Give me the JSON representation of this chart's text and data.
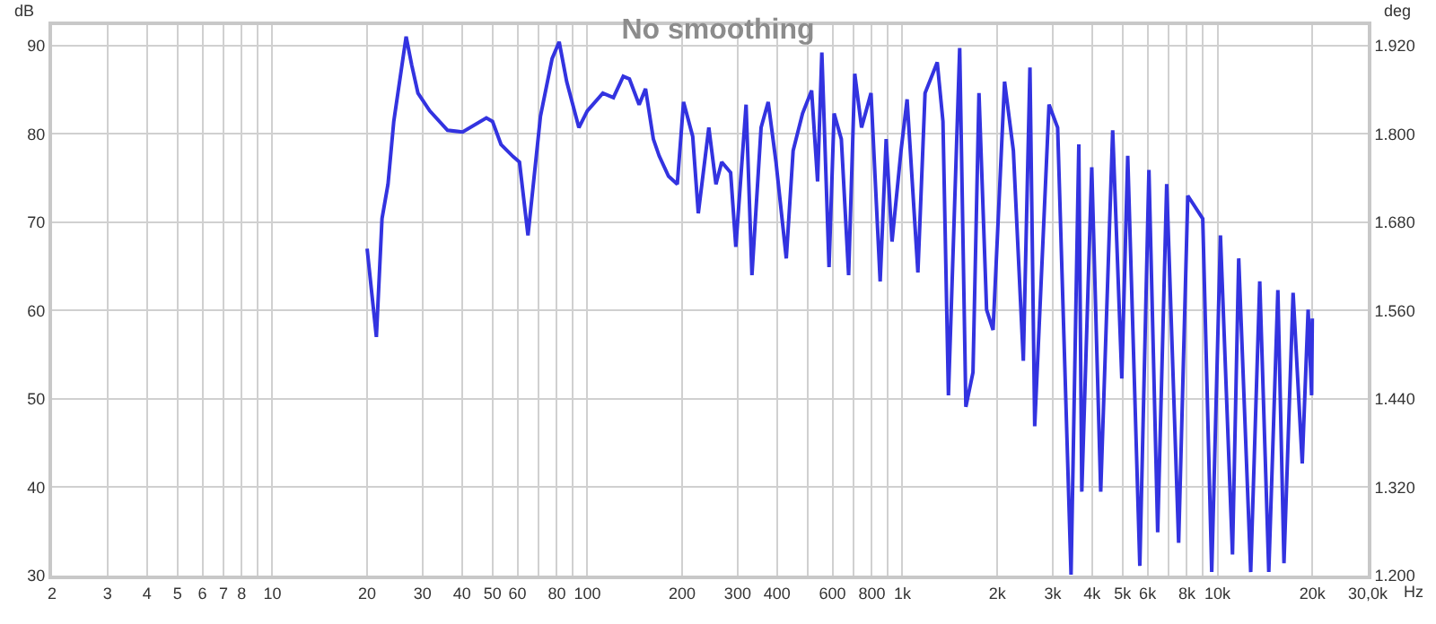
{
  "chart_data": {
    "type": "line",
    "title": "No smoothing",
    "xlabel": "Hz",
    "ylabel": "dB",
    "y2label": "deg",
    "log": "x",
    "grid": true,
    "marker": "none",
    "line_style": "solid",
    "xlim": [
      2,
      30000
    ],
    "ylim": [
      30,
      92.3
    ],
    "y2lim": [
      1.2,
      1.948
    ],
    "xticks": [
      2,
      3,
      4,
      5,
      6,
      7,
      8,
      {
        "value": 9,
        "label": null
      },
      10,
      20,
      30,
      40,
      50,
      60,
      {
        "value": 70,
        "label": null
      },
      80,
      {
        "value": 90,
        "label": null
      },
      100,
      200,
      300,
      400,
      {
        "value": 500,
        "label": null
      },
      600,
      {
        "value": 700,
        "label": null
      },
      800,
      {
        "value": 900,
        "label": null
      },
      {
        "value": 1000,
        "label": "1k"
      },
      {
        "value": 2000,
        "label": "2k"
      },
      {
        "value": 3000,
        "label": "3k"
      },
      {
        "value": 4000,
        "label": "4k"
      },
      {
        "value": 5000,
        "label": "5k"
      },
      {
        "value": 6000,
        "label": "6k"
      },
      {
        "value": 7000,
        "label": null
      },
      {
        "value": 8000,
        "label": "8k"
      },
      {
        "value": 9000,
        "label": null
      },
      {
        "value": 10000,
        "label": "10k"
      },
      {
        "value": 20000,
        "label": "20k"
      },
      {
        "value": 30000,
        "label": "30,0k"
      }
    ],
    "yticks": [
      30,
      40,
      50,
      60,
      70,
      80,
      90
    ],
    "y2ticks": [
      {
        "value": 1.2,
        "label": "1.200"
      },
      {
        "value": 1.32,
        "label": "1.320"
      },
      {
        "value": 1.44,
        "label": "1.440"
      },
      {
        "value": 1.56,
        "label": "1.560"
      },
      {
        "value": 1.68,
        "label": "1.680"
      },
      {
        "value": 1.8,
        "label": "1.800"
      },
      {
        "value": 1.92,
        "label": "1.920"
      }
    ],
    "series": [
      {
        "color": "#3333e0",
        "x": [
          20,
          21.4,
          22.3,
          23.3,
          24.3,
          26.6,
          27.7,
          29,
          31.6,
          36,
          40.2,
          47.8,
          50,
          53.2,
          58.2,
          60.9,
          64.8,
          71,
          77.3,
          81.4,
          86,
          94,
          100,
          112,
          121,
          130,
          136,
          146,
          153,
          162,
          169,
          181,
          193,
          202,
          216,
          225,
          243,
          256,
          267,
          285,
          296,
          319,
          333,
          356,
          375,
          397,
          428,
          450,
          482,
          515,
          538,
          555,
          585,
          607,
          640,
          675,
          706,
          742,
          795,
          850,
          888,
          927,
          990,
          1035,
          1120,
          1180,
          1290,
          1345,
          1400,
          1520,
          1590,
          1675,
          1750,
          1850,
          1940,
          2110,
          2250,
          2420,
          2540,
          2630,
          2920,
          3110,
          3430,
          3630,
          3710,
          3990,
          4260,
          4650,
          4970,
          5190,
          5670,
          6060,
          6460,
          6900,
          7530,
          8050,
          8980,
          9590,
          10220,
          11160,
          11680,
          12750,
          13620,
          14550,
          15550,
          16260,
          17380,
          18580,
          19400,
          19900,
          20000
        ],
        "values": [
          67,
          57,
          70.4,
          74.3,
          81.4,
          91,
          87.8,
          84.6,
          82.6,
          80.4,
          80.2,
          81.8,
          81.4,
          78.8,
          77.4,
          76.8,
          68.5,
          82,
          88.5,
          90.4,
          85.9,
          80.7,
          82.6,
          84.6,
          84.1,
          86.5,
          86.2,
          83.3,
          85.1,
          79.4,
          77.5,
          75.2,
          74.3,
          83.6,
          79.7,
          71,
          80.7,
          74.3,
          76.8,
          75.6,
          67.2,
          83.3,
          64,
          80.7,
          83.6,
          76.8,
          65.9,
          78.1,
          82.3,
          84.9,
          74.6,
          89.2,
          64.9,
          82.3,
          79.4,
          64,
          86.8,
          80.7,
          84.6,
          63.3,
          79.4,
          67.8,
          78.1,
          83.9,
          64.3,
          84.6,
          88.1,
          81.4,
          50.4,
          89.7,
          49.1,
          53,
          84.6,
          60.1,
          57.8,
          85.9,
          78.1,
          54.3,
          87.5,
          46.9,
          83.3,
          80.7,
          30.1,
          78.8,
          39.5,
          76.2,
          39.5,
          80.4,
          52.3,
          77.5,
          31.1,
          75.9,
          34.9,
          74.3,
          33.7,
          73,
          70.4,
          30.4,
          68.5,
          32.4,
          65.9,
          30.4,
          63.3,
          30.4,
          62.3,
          31.4,
          62,
          42.7,
          60.1,
          50.4,
          59.1
        ]
      }
    ]
  }
}
